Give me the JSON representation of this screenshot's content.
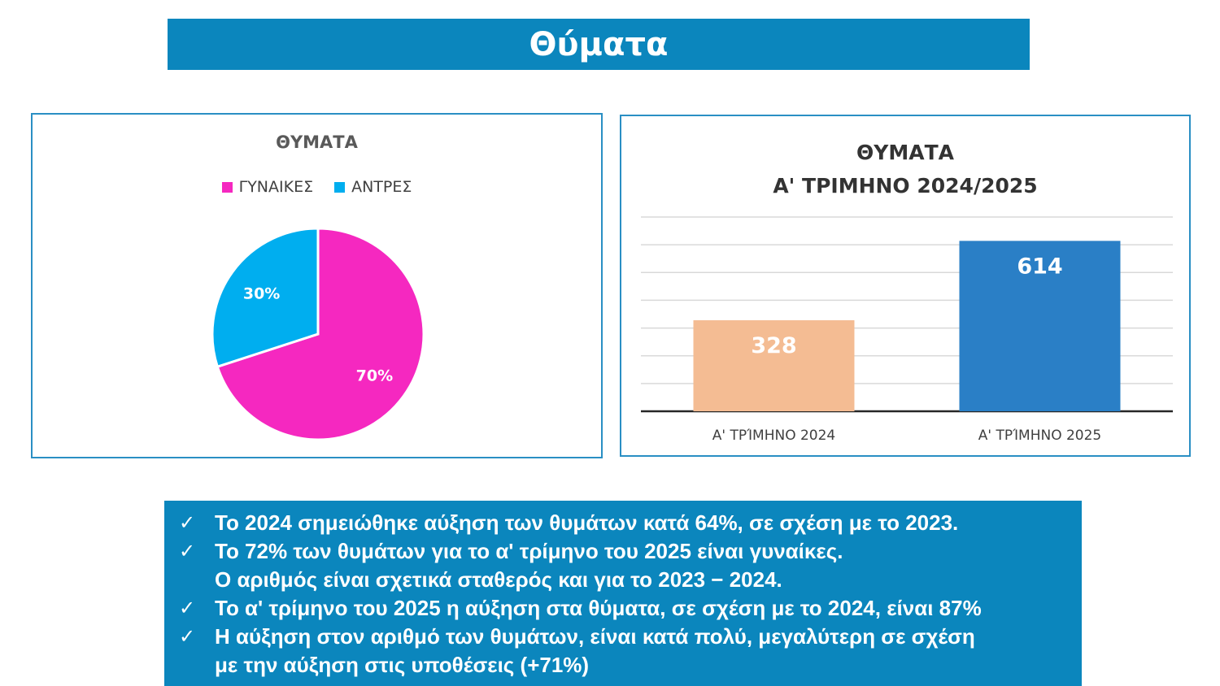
{
  "page": {
    "title": "Θύματα"
  },
  "pie_chart_title": "ΘΥΜΑΤΑ",
  "bar_chart_title_lines": [
    "ΘΥΜΑΤΑ",
    "Α' ΤΡΙΜΗΝΟ 2024/2025"
  ],
  "chart_data": [
    {
      "type": "pie",
      "title": "ΘΥΜΑΤΑ",
      "legend_position": "top",
      "slices": [
        {
          "label": "ΓΥΝΑΙΚΕΣ",
          "value": 70,
          "display": "70%",
          "color": "#f528c0"
        },
        {
          "label": "ΑΝΤΡΕΣ",
          "value": 30,
          "display": "30%",
          "color": "#00aeef"
        }
      ]
    },
    {
      "type": "bar",
      "title": "ΘΥΜΑΤΑ Α' ΤΡΙΜΗΝΟ 2024/2025",
      "categories": [
        "Α' ΤΡΊΜΗΝΟ 2024",
        "Α' ΤΡΊΜΗΝΟ 2025"
      ],
      "values": [
        328,
        614
      ],
      "colors": [
        "#f4bc93",
        "#2a7fc6"
      ],
      "ylim": [
        0,
        700
      ],
      "grid": true
    }
  ],
  "notes": [
    {
      "icon": "check-icon",
      "mark": "✓",
      "lines": [
        "Το 2024 σημειώθηκε αύξηση των θυμάτων κατά 64%, σε σχέση με το 2023."
      ]
    },
    {
      "icon": "check-icon",
      "mark": "✓",
      "lines": [
        "Το 72% των θυμάτων για το α' τρίμηνο του 2025 είναι γυναίκες.",
        "Ο αριθμός είναι σχετικά σταθερός και για το 2023 − 2024."
      ]
    },
    {
      "icon": "check-icon",
      "mark": "✓",
      "lines": [
        "Το α' τρίμηνο του 2025 η αύξηση στα θύματα, σε σχέση με το 2024, είναι 87%"
      ]
    },
    {
      "icon": "check-icon",
      "mark": "✓",
      "lines": [
        "Η αύξηση στον αριθμό των θυμάτων, είναι κατά πολύ, μεγαλύτερη σε σχέση",
        "με την αύξηση στις υποθέσεις (+71%)"
      ]
    }
  ]
}
